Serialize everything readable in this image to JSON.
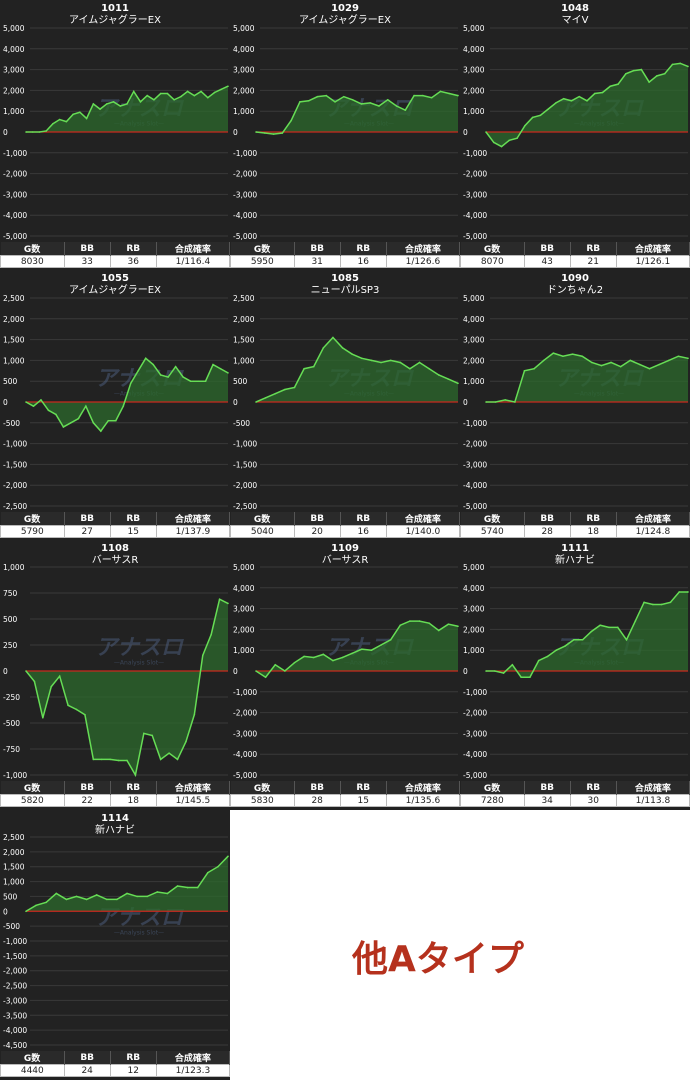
{
  "table_headers": [
    "G数",
    "BB",
    "RB",
    "合成確率"
  ],
  "watermark": {
    "title": "アナスロ",
    "subtitle": "Analysis Slot"
  },
  "category_label": "他Aタイプ",
  "colors": {
    "line": "#66dd55",
    "area": "#2c6a2c",
    "zero": "#c8281e",
    "label": "#c8281e"
  },
  "chart_data": [
    {
      "type": "area",
      "machine_no": "1011",
      "title": "アイムジャグラーEX",
      "y_ticks": [
        5000,
        4000,
        3000,
        2000,
        1000,
        0,
        -1000,
        -2000,
        -3000,
        -4000,
        -5000
      ],
      "y_tick_labels": [
        "5,000",
        "4,000",
        "3,000",
        "2,000",
        "1,000",
        "0",
        "-1,000",
        "-2,000",
        "-3,000",
        "-4,000",
        "-5,000"
      ],
      "ylim": [
        -5000,
        5000
      ],
      "y": [
        0,
        0,
        0,
        50,
        400,
        600,
        500,
        850,
        950,
        650,
        1350,
        1100,
        1350,
        1450,
        1250,
        1350,
        1950,
        1450,
        1750,
        1550,
        1850,
        1850,
        1550,
        1700,
        1950,
        1750,
        1950,
        1650,
        1900,
        2050,
        2200
      ],
      "stats": {
        "g": "8030",
        "bb": "33",
        "rb": "36",
        "prob": "1/116.4"
      }
    },
    {
      "type": "area",
      "machine_no": "1029",
      "title": "アイムジャグラーEX",
      "y_ticks": [
        5000,
        4000,
        3000,
        2000,
        1000,
        0,
        -1000,
        -2000,
        -3000,
        -4000,
        -5000
      ],
      "y_tick_labels": [
        "5,000",
        "4,000",
        "3,000",
        "2,000",
        "1,000",
        "0",
        "-1,000",
        "-2,000",
        "-3,000",
        "-4,000",
        "-5,000"
      ],
      "ylim": [
        -5000,
        5000
      ],
      "y": [
        0,
        -50,
        -100,
        -50,
        550,
        1450,
        1500,
        1700,
        1750,
        1450,
        1700,
        1550,
        1350,
        1400,
        1250,
        1550,
        1250,
        1050,
        1750,
        1750,
        1650,
        1950,
        1850,
        1750
      ],
      "stats": {
        "g": "5950",
        "bb": "31",
        "rb": "16",
        "prob": "1/126.6"
      }
    },
    {
      "type": "area",
      "machine_no": "1048",
      "title": "マイV",
      "y_ticks": [
        5000,
        4000,
        3000,
        2000,
        1000,
        0,
        -1000,
        -2000,
        -3000,
        -4000,
        -5000
      ],
      "y_tick_labels": [
        "5,000",
        "4,000",
        "3,000",
        "2,000",
        "1,000",
        "0",
        "-1,000",
        "-2,000",
        "-3,000",
        "-4,000",
        "-5,000"
      ],
      "ylim": [
        -5000,
        5000
      ],
      "y": [
        0,
        -500,
        -700,
        -400,
        -300,
        300,
        700,
        800,
        1100,
        1400,
        1600,
        1500,
        1700,
        1500,
        1850,
        1900,
        2200,
        2300,
        2800,
        2950,
        3000,
        2400,
        2700,
        2800,
        3250,
        3300,
        3150
      ],
      "stats": {
        "g": "8070",
        "bb": "43",
        "rb": "21",
        "prob": "1/126.1"
      }
    },
    {
      "type": "area",
      "machine_no": "1055",
      "title": "アイムジャグラーEX",
      "y_ticks": [
        2500,
        2000,
        1500,
        1000,
        500,
        0,
        -500,
        -1000,
        -1500,
        -2000,
        -2500
      ],
      "y_tick_labels": [
        "2,500",
        "2,000",
        "1,500",
        "1,000",
        "500",
        "0",
        "-500",
        "-1,000",
        "-1,500",
        "-2,000",
        "-2,500"
      ],
      "ylim": [
        -2500,
        2500
      ],
      "y": [
        0,
        -100,
        50,
        -200,
        -300,
        -600,
        -500,
        -400,
        -100,
        -500,
        -700,
        -450,
        -450,
        -100,
        450,
        750,
        1050,
        900,
        650,
        600,
        850,
        600,
        500,
        500,
        500,
        900,
        800,
        700
      ],
      "stats": {
        "g": "5790",
        "bb": "27",
        "rb": "15",
        "prob": "1/137.9"
      }
    },
    {
      "type": "area",
      "machine_no": "1085",
      "title": "ニューパルSP3",
      "y_ticks": [
        2500,
        2000,
        1500,
        1000,
        500,
        0,
        -500,
        -1000,
        -1500,
        -2000,
        -2500
      ],
      "y_tick_labels": [
        "2,500",
        "2,000",
        "1,500",
        "1,000",
        "500",
        "0",
        "-500",
        "-1,000",
        "-1,500",
        "-2,000",
        "-2,500"
      ],
      "ylim": [
        -2500,
        2500
      ],
      "y": [
        0,
        100,
        200,
        300,
        350,
        800,
        850,
        1300,
        1550,
        1300,
        1150,
        1050,
        1000,
        950,
        1000,
        950,
        800,
        950,
        800,
        650,
        550,
        450
      ],
      "stats": {
        "g": "5040",
        "bb": "20",
        "rb": "16",
        "prob": "1/140.0"
      }
    },
    {
      "type": "area",
      "machine_no": "1090",
      "title": "ドンちゃん2",
      "y_ticks": [
        5000,
        4000,
        3000,
        2000,
        1000,
        0,
        -1000,
        -2000,
        -3000,
        -4000,
        -5000
      ],
      "y_tick_labels": [
        "5,000",
        "4,000",
        "3,000",
        "2,000",
        "1,000",
        "0",
        "-1,000",
        "-2,000",
        "-3,000",
        "-4,000",
        "-5,000"
      ],
      "ylim": [
        -5000,
        5000
      ],
      "y": [
        0,
        0,
        100,
        0,
        1500,
        1600,
        2000,
        2350,
        2200,
        2300,
        2200,
        1900,
        1750,
        1900,
        1700,
        2000,
        1800,
        1600,
        1800,
        2000,
        2200,
        2100
      ],
      "stats": {
        "g": "5740",
        "bb": "28",
        "rb": "18",
        "prob": "1/124.8"
      }
    },
    {
      "type": "area",
      "machine_no": "1108",
      "title": "バーサスR",
      "y_ticks": [
        1000,
        750,
        500,
        250,
        0,
        -250,
        -500,
        -750,
        -1000
      ],
      "y_tick_labels": [
        "1,000",
        "750",
        "500",
        "250",
        "0",
        "-250",
        "-500",
        "-750",
        "-1,000"
      ],
      "ylim": [
        -1000,
        1000
      ],
      "y": [
        0,
        -100,
        -450,
        -150,
        -50,
        -330,
        -370,
        -420,
        -850,
        -850,
        -850,
        -860,
        -860,
        -1000,
        -600,
        -620,
        -850,
        -790,
        -850,
        -680,
        -420,
        150,
        350,
        690,
        650
      ],
      "stats": {
        "g": "5820",
        "bb": "22",
        "rb": "18",
        "prob": "1/145.5"
      }
    },
    {
      "type": "area",
      "machine_no": "1109",
      "title": "バーサスR",
      "y_ticks": [
        5000,
        4000,
        3000,
        2000,
        1000,
        0,
        -1000,
        -2000,
        -3000,
        -4000,
        -5000
      ],
      "y_tick_labels": [
        "5,000",
        "4,000",
        "3,000",
        "2,000",
        "1,000",
        "0",
        "-1,000",
        "-2,000",
        "-3,000",
        "-4,000",
        "-5,000"
      ],
      "ylim": [
        -5000,
        5000
      ],
      "y": [
        0,
        -300,
        300,
        0,
        400,
        700,
        650,
        800,
        500,
        650,
        850,
        1050,
        1000,
        1250,
        1500,
        2200,
        2400,
        2400,
        2300,
        1950,
        2250,
        2150
      ],
      "stats": {
        "g": "5830",
        "bb": "28",
        "rb": "15",
        "prob": "1/135.6"
      }
    },
    {
      "type": "area",
      "machine_no": "1111",
      "title": "新ハナビ",
      "y_ticks": [
        5000,
        4000,
        3000,
        2000,
        1000,
        0,
        -1000,
        -2000,
        -3000,
        -4000,
        -5000
      ],
      "y_tick_labels": [
        "5,000",
        "4,000",
        "3,000",
        "2,000",
        "1,000",
        "0",
        "-1,000",
        "-2,000",
        "-3,000",
        "-4,000",
        "-5,000"
      ],
      "ylim": [
        -5000,
        5000
      ],
      "y": [
        0,
        0,
        -100,
        300,
        -300,
        -300,
        500,
        700,
        1000,
        1200,
        1500,
        1500,
        1900,
        2200,
        2100,
        2100,
        1500,
        2400,
        3300,
        3200,
        3200,
        3300,
        3800,
        3800
      ],
      "stats": {
        "g": "7280",
        "bb": "34",
        "rb": "30",
        "prob": "1/113.8"
      }
    },
    {
      "type": "area",
      "machine_no": "1114",
      "title": "新ハナビ",
      "y_ticks": [
        2500,
        2000,
        1500,
        1000,
        500,
        0,
        -500,
        -1000,
        -1500,
        -2000,
        -2500,
        -3000,
        -3500,
        -4000,
        -4500
      ],
      "y_tick_labels": [
        "2,500",
        "2,000",
        "1,500",
        "1,000",
        "500",
        "0",
        "-500",
        "-1,000",
        "-1,500",
        "-2,000",
        "-2,500",
        "-3,000",
        "-3,500",
        "-4,000",
        "-4,500"
      ],
      "ylim": [
        -4500,
        2500
      ],
      "y": [
        0,
        200,
        300,
        600,
        400,
        500,
        400,
        550,
        400,
        400,
        600,
        500,
        500,
        650,
        600,
        850,
        800,
        800,
        1300,
        1500,
        1850
      ],
      "stats": {
        "g": "4440",
        "bb": "24",
        "rb": "12",
        "prob": "1/123.3"
      }
    }
  ]
}
